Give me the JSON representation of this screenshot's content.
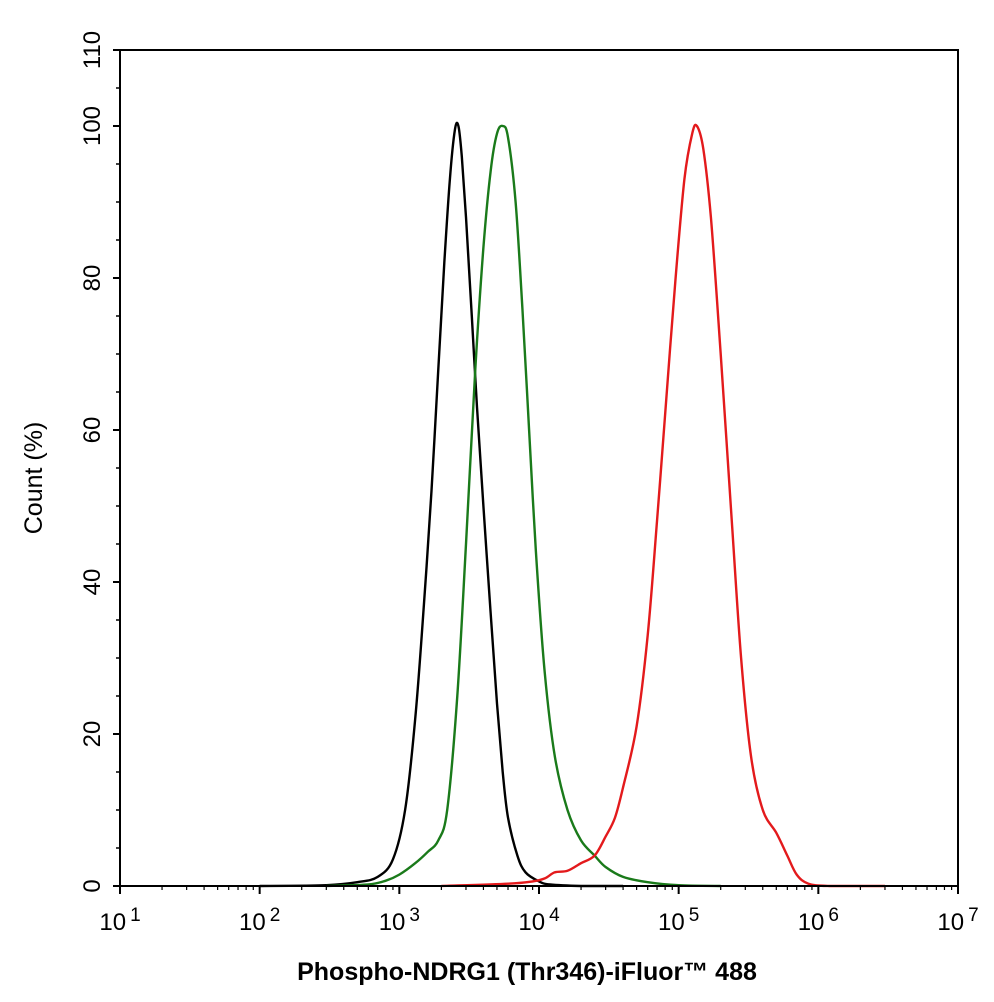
{
  "chart_data": {
    "type": "line",
    "title": "",
    "xlabel": "Phospho-NDRG1 (Thr346)-iFluor™ 488",
    "ylabel": "Count  (%)",
    "x_scale": "log",
    "xlim": [
      10,
      10000000
    ],
    "ylim": [
      0,
      110
    ],
    "x_ticks": [
      {
        "value": 10,
        "base": "10",
        "exp": "1"
      },
      {
        "value": 100,
        "base": "10",
        "exp": "2"
      },
      {
        "value": 1000,
        "base": "10",
        "exp": "3"
      },
      {
        "value": 10000,
        "base": "10",
        "exp": "4"
      },
      {
        "value": 100000,
        "base": "10",
        "exp": "5"
      },
      {
        "value": 1000000,
        "base": "10",
        "exp": "6"
      },
      {
        "value": 10000000,
        "base": "10",
        "exp": "7"
      }
    ],
    "y_ticks": [
      {
        "value": 0,
        "label": "0"
      },
      {
        "value": 20,
        "label": "20"
      },
      {
        "value": 40,
        "label": "40"
      },
      {
        "value": 60,
        "label": "60"
      },
      {
        "value": 80,
        "label": "80"
      },
      {
        "value": 100,
        "label": "100"
      },
      {
        "value": 110,
        "label": "110"
      }
    ],
    "grid": false,
    "legend": "none",
    "series": [
      {
        "color": "#000000",
        "points": [
          [
            100,
            0
          ],
          [
            300,
            0.1
          ],
          [
            500,
            0.5
          ],
          [
            700,
            1.2
          ],
          [
            900,
            3.5
          ],
          [
            1100,
            10
          ],
          [
            1300,
            22
          ],
          [
            1500,
            37
          ],
          [
            1700,
            52
          ],
          [
            1900,
            68
          ],
          [
            2100,
            82
          ],
          [
            2300,
            93
          ],
          [
            2500,
            99.5
          ],
          [
            2650,
            100
          ],
          [
            2800,
            96
          ],
          [
            3000,
            88
          ],
          [
            3300,
            75
          ],
          [
            3600,
            63
          ],
          [
            4000,
            50
          ],
          [
            4500,
            36
          ],
          [
            5000,
            24
          ],
          [
            5500,
            15
          ],
          [
            6000,
            9
          ],
          [
            7000,
            4
          ],
          [
            8000,
            1.8
          ],
          [
            10000,
            0.6
          ],
          [
            12000,
            0.2
          ],
          [
            20000,
            0
          ],
          [
            40000,
            0
          ]
        ]
      },
      {
        "color": "#1a7a1a",
        "points": [
          [
            300,
            0
          ],
          [
            600,
            0.2
          ],
          [
            800,
            0.7
          ],
          [
            1000,
            1.5
          ],
          [
            1300,
            3
          ],
          [
            1600,
            4.5
          ],
          [
            1900,
            6
          ],
          [
            2200,
            10
          ],
          [
            2600,
            25
          ],
          [
            3000,
            45
          ],
          [
            3500,
            68
          ],
          [
            4000,
            84
          ],
          [
            4500,
            94
          ],
          [
            5000,
            99
          ],
          [
            5500,
            100
          ],
          [
            6000,
            98.5
          ],
          [
            6800,
            90
          ],
          [
            7600,
            76
          ],
          [
            8500,
            60
          ],
          [
            9500,
            44
          ],
          [
            11000,
            28
          ],
          [
            13000,
            17
          ],
          [
            16000,
            10
          ],
          [
            20000,
            6
          ],
          [
            25000,
            4
          ],
          [
            30000,
            2.5
          ],
          [
            40000,
            1.2
          ],
          [
            60000,
            0.5
          ],
          [
            100000,
            0.1
          ],
          [
            200000,
            0
          ]
        ]
      },
      {
        "color": "#e31a1c",
        "points": [
          [
            2000,
            0
          ],
          [
            6000,
            0.3
          ],
          [
            9000,
            0.6
          ],
          [
            11000,
            1
          ],
          [
            13000,
            1.8
          ],
          [
            16000,
            2
          ],
          [
            20000,
            3
          ],
          [
            25000,
            4
          ],
          [
            30000,
            6.5
          ],
          [
            35000,
            9
          ],
          [
            40000,
            13
          ],
          [
            50000,
            21
          ],
          [
            60000,
            33
          ],
          [
            70000,
            48
          ],
          [
            80000,
            62
          ],
          [
            95000,
            80
          ],
          [
            110000,
            93
          ],
          [
            125000,
            99
          ],
          [
            135000,
            100
          ],
          [
            150000,
            97
          ],
          [
            170000,
            88
          ],
          [
            200000,
            70
          ],
          [
            240000,
            48
          ],
          [
            280000,
            30
          ],
          [
            330000,
            17
          ],
          [
            400000,
            10
          ],
          [
            500000,
            7
          ],
          [
            600000,
            4
          ],
          [
            700000,
            1.5
          ],
          [
            850000,
            0.3
          ],
          [
            1200000,
            0
          ],
          [
            3000000,
            0
          ]
        ]
      }
    ]
  }
}
